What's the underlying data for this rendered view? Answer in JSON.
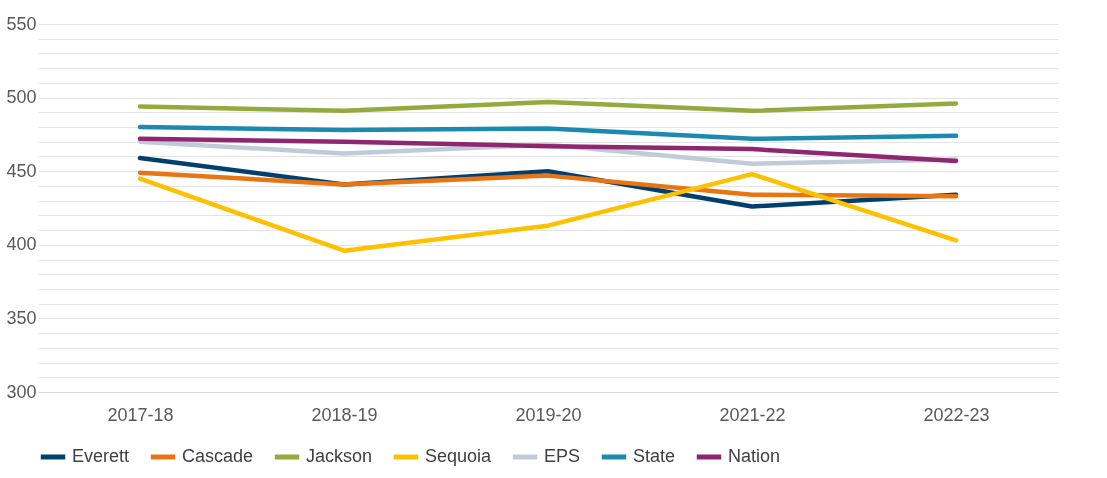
{
  "chart_data": {
    "type": "line",
    "categories": [
      "2017-18",
      "2018-19",
      "2019-20",
      "2021-22",
      "2022-23"
    ],
    "series": [
      {
        "name": "Everett",
        "color": "#003f6e",
        "values": [
          459,
          441,
          450,
          426,
          434
        ]
      },
      {
        "name": "Cascade",
        "color": "#e87511",
        "values": [
          449,
          441,
          447,
          434,
          433
        ]
      },
      {
        "name": "Jackson",
        "color": "#93ab3c",
        "values": [
          494,
          491,
          497,
          491,
          496
        ]
      },
      {
        "name": "Sequoia",
        "color": "#fdc100",
        "values": [
          445,
          396,
          413,
          448,
          403
        ]
      },
      {
        "name": "EPS",
        "color": "#bfcbd9",
        "values": [
          470,
          462,
          468,
          455,
          458
        ]
      },
      {
        "name": "State",
        "color": "#1c8aae",
        "values": [
          480,
          478,
          479,
          472,
          474
        ]
      },
      {
        "name": "Nation",
        "color": "#8e2770",
        "values": [
          472,
          470,
          467,
          465,
          457
        ]
      }
    ],
    "ylim": [
      300,
      550
    ],
    "yticks": [
      300,
      {
        "value": 310,
        "label": null
      },
      {
        "value": 320,
        "label": null
      },
      {
        "value": 330,
        "label": null
      },
      {
        "value": 340,
        "label": null
      },
      350,
      {
        "value": 360,
        "label": null
      },
      {
        "value": 370,
        "label": null
      },
      {
        "value": 380,
        "label": null
      },
      {
        "value": 390,
        "label": null
      },
      400,
      {
        "value": 410,
        "label": null
      },
      {
        "value": 420,
        "label": null
      },
      {
        "value": 430,
        "label": null
      },
      {
        "value": 440,
        "label": null
      },
      450,
      {
        "value": 460,
        "label": null
      },
      {
        "value": 470,
        "label": null
      },
      {
        "value": 480,
        "label": null
      },
      {
        "value": 490,
        "label": null
      },
      500,
      {
        "value": 510,
        "label": null
      },
      {
        "value": 520,
        "label": null
      },
      {
        "value": 530,
        "label": null
      },
      {
        "value": 540,
        "label": null
      },
      550
    ],
    "grid": "y",
    "legend": "bottom",
    "marker": "none",
    "line_style": "solid"
  }
}
